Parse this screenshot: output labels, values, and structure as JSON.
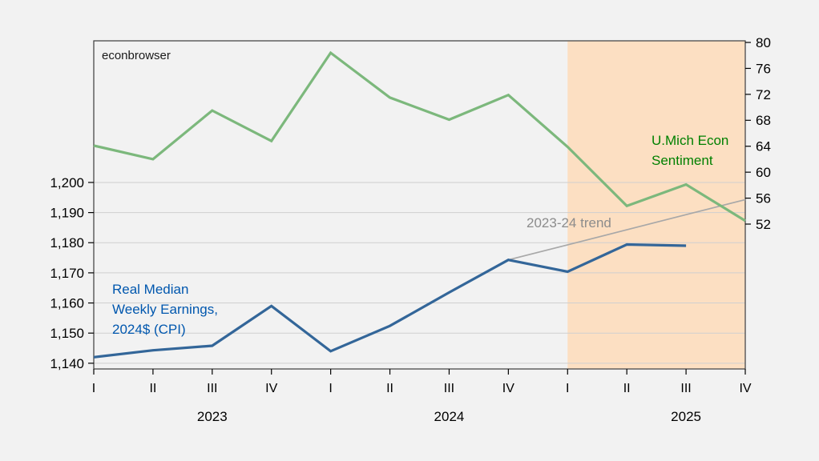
{
  "watermark": "econbrowser",
  "colors": {
    "background": "#F2F2F2",
    "plot_background": "#FFFFFF",
    "plot_border": "#3C3C3C",
    "grid": "#CFCFCF",
    "tick": "#000000",
    "forecast_shading": "#FCDFC2",
    "earnings_line": "#336699",
    "sentiment_line": "#7CB87C",
    "trend_line": "#A8A8A8",
    "earnings_label": "#0057AE",
    "sentiment_label": "#008000",
    "trend_label": "#8C8C8C",
    "watermark_text": "#1A1A1A"
  },
  "chart_data": {
    "type": "line",
    "categories": [
      "2023 Q1",
      "2023 Q2",
      "2023 Q3",
      "2023 Q4",
      "2024 Q1",
      "2024 Q2",
      "2024 Q3",
      "2024 Q4",
      "2025 Q1",
      "2025 Q2",
      "2025 Q3",
      "2025 Q4"
    ],
    "x_tick_labels": [
      "I",
      "II",
      "III",
      "IV",
      "I",
      "II",
      "III",
      "IV",
      "I",
      "II",
      "III",
      "IV"
    ],
    "year_labels": [
      {
        "text": "2023",
        "tick_index": 2
      },
      {
        "text": "2024",
        "tick_index": 6
      },
      {
        "text": "2025",
        "tick_index": 10
      }
    ],
    "left_axis": {
      "ticks": [
        1140,
        1150,
        1160,
        1170,
        1180,
        1190,
        1200
      ],
      "tick_labels": [
        "1,140",
        "1,150",
        "1,160",
        "1,170",
        "1,180",
        "1,190",
        "1,200"
      ],
      "ylim": [
        1138.1,
        1247.0
      ]
    },
    "right_axis": {
      "ticks": [
        52,
        56,
        60,
        64,
        68,
        72,
        76,
        80
      ],
      "tick_labels": [
        "52",
        "56",
        "60",
        "64",
        "68",
        "72",
        "76",
        "80"
      ],
      "ylim": [
        29.67,
        80.25
      ]
    },
    "grid": "horizontal-only",
    "legend_position": "in-plot text annotations",
    "series": [
      {
        "name": "2023-24 trend",
        "role": "trend",
        "axis": "left",
        "color_key": "trend_line",
        "values": [
          null,
          null,
          null,
          null,
          null,
          null,
          null,
          1174.3,
          1179.3,
          1184.3,
          1189.3,
          1194.3
        ]
      },
      {
        "name": "U.Mich Econ Sentiment",
        "role": "data",
        "axis": "right",
        "color_key": "sentiment_line",
        "values": [
          64.1,
          62.0,
          69.5,
          64.8,
          78.4,
          71.5,
          68.1,
          71.9,
          63.9,
          54.8,
          58.1,
          52.5
        ]
      },
      {
        "name": "Real Median Weekly Earnings, 2024$ (CPI)",
        "role": "data",
        "axis": "left",
        "color_key": "earnings_line",
        "values": [
          1142.0,
          1144.3,
          1145.8,
          1159.0,
          1144.0,
          1152.4,
          1163.5,
          1174.3,
          1170.4,
          1179.4,
          1179.0,
          null
        ]
      }
    ],
    "shaded_region": {
      "start_index": 8,
      "end_index": 11,
      "color_key": "forecast_shading"
    }
  },
  "annotations": {
    "earnings_label": {
      "lines": [
        "Real Median",
        "Weekly Earnings,",
        "2024$ (CPI)"
      ]
    },
    "sentiment_label": {
      "lines": [
        "U.Mich Econ",
        "Sentiment"
      ]
    },
    "trend_label": {
      "text": "2023-24 trend"
    }
  }
}
